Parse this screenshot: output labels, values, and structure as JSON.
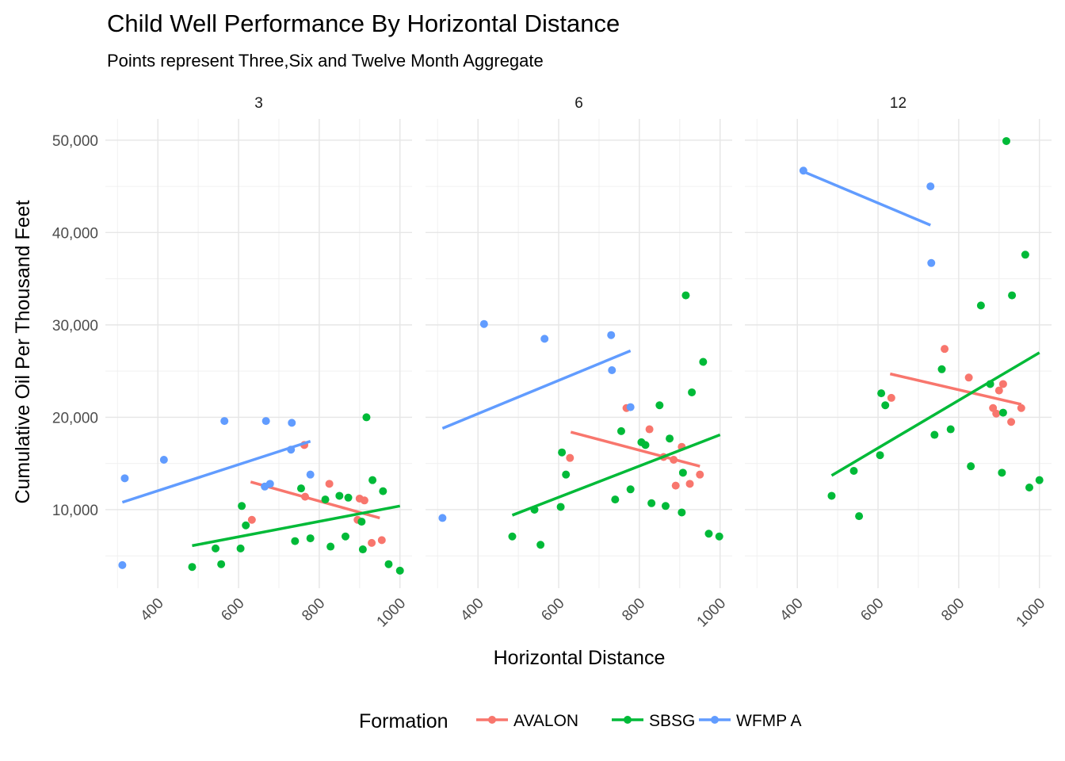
{
  "chart_data": {
    "type": "scatter",
    "title": "Child Well Performance By Horizontal Distance",
    "subtitle": "Points represent Three,Six and Twelve Month Aggregate",
    "xlabel": "Horizontal Distance",
    "ylabel": "Cumulative Oil Per Thousand Feet",
    "xlim": [
      270,
      1030
    ],
    "ylim": [
      1500,
      52300
    ],
    "x_ticks": [
      400,
      600,
      800,
      1000
    ],
    "x_tick_labels": [
      "400",
      "600",
      "800",
      "1000"
    ],
    "y_ticks": [
      10000,
      20000,
      30000,
      40000,
      50000
    ],
    "y_tick_labels": [
      "10,000",
      "20,000",
      "30,000",
      "40,000",
      "50,000"
    ],
    "grid": true,
    "legend": {
      "title": "Formation",
      "position": "bottom",
      "entries": [
        {
          "name": "AVALON",
          "color": "#F8766D"
        },
        {
          "name": "SBSG",
          "color": "#00BA38"
        },
        {
          "name": "WFMP A",
          "color": "#619CFF"
        }
      ]
    },
    "panels": [
      {
        "label": "3",
        "series": [
          {
            "name": "AVALON",
            "color": "#F8766D",
            "points": [
              [
                633,
                8900
              ],
              [
                763,
                17000
              ],
              [
                765,
                11400
              ],
              [
                825,
                12800
              ],
              [
                895,
                8900
              ],
              [
                900,
                11200
              ],
              [
                912,
                11000
              ],
              [
                930,
                6400
              ],
              [
                955,
                6700
              ]
            ],
            "fit": [
              [
                630,
                13000
              ],
              [
                950,
                9100
              ]
            ]
          },
          {
            "name": "SBSG",
            "color": "#00BA38",
            "points": [
              [
                485,
                3800
              ],
              [
                543,
                5800
              ],
              [
                557,
                4100
              ],
              [
                605,
                5800
              ],
              [
                608,
                10400
              ],
              [
                618,
                8300
              ],
              [
                740,
                6600
              ],
              [
                755,
                12300
              ],
              [
                778,
                6900
              ],
              [
                815,
                11100
              ],
              [
                828,
                6000
              ],
              [
                850,
                11500
              ],
              [
                865,
                7100
              ],
              [
                872,
                11300
              ],
              [
                905,
                8700
              ],
              [
                908,
                5700
              ],
              [
                917,
                20000
              ],
              [
                932,
                13200
              ],
              [
                958,
                12000
              ],
              [
                972,
                4100
              ],
              [
                1000,
                3400
              ]
            ],
            "fit": [
              [
                485,
                6100
              ],
              [
                1000,
                10400
              ]
            ]
          },
          {
            "name": "WFMP A",
            "color": "#619CFF",
            "points": [
              [
                312,
                4000
              ],
              [
                318,
                13400
              ],
              [
                415,
                15400
              ],
              [
                565,
                19600
              ],
              [
                665,
                12500
              ],
              [
                668,
                19600
              ],
              [
                678,
                12800
              ],
              [
                730,
                16500
              ],
              [
                732,
                19400
              ],
              [
                778,
                13800
              ]
            ],
            "fit": [
              [
                312,
                10800
              ],
              [
                778,
                17400
              ]
            ]
          }
        ]
      },
      {
        "label": "6",
        "series": [
          {
            "name": "AVALON",
            "color": "#F8766D",
            "points": [
              [
                628,
                15600
              ],
              [
                768,
                21000
              ],
              [
                825,
                18700
              ],
              [
                860,
                15700
              ],
              [
                885,
                15400
              ],
              [
                890,
                12600
              ],
              [
                905,
                16800
              ],
              [
                925,
                12800
              ],
              [
                950,
                13800
              ]
            ],
            "fit": [
              [
                630,
                18400
              ],
              [
                950,
                14700
              ]
            ]
          },
          {
            "name": "SBSG",
            "color": "#00BA38",
            "points": [
              [
                485,
                7100
              ],
              [
                540,
                10000
              ],
              [
                555,
                6200
              ],
              [
                605,
                10300
              ],
              [
                608,
                16200
              ],
              [
                618,
                13800
              ],
              [
                740,
                11100
              ],
              [
                755,
                18500
              ],
              [
                778,
                12200
              ],
              [
                805,
                17300
              ],
              [
                815,
                17000
              ],
              [
                830,
                10700
              ],
              [
                850,
                21300
              ],
              [
                865,
                10400
              ],
              [
                875,
                17700
              ],
              [
                905,
                9700
              ],
              [
                908,
                14000
              ],
              [
                915,
                33200
              ],
              [
                930,
                22700
              ],
              [
                958,
                26000
              ],
              [
                972,
                7400
              ],
              [
                998,
                7100
              ]
            ],
            "fit": [
              [
                485,
                9400
              ],
              [
                1000,
                18100
              ]
            ]
          },
          {
            "name": "WFMP A",
            "color": "#619CFF",
            "points": [
              [
                312,
                9100
              ],
              [
                415,
                30100
              ],
              [
                565,
                28500
              ],
              [
                730,
                28900
              ],
              [
                732,
                25100
              ],
              [
                778,
                21100
              ]
            ],
            "fit": [
              [
                312,
                18800
              ],
              [
                778,
                27200
              ]
            ]
          }
        ]
      },
      {
        "label": "12",
        "series": [
          {
            "name": "AVALON",
            "color": "#F8766D",
            "points": [
              [
                633,
                22100
              ],
              [
                765,
                27400
              ],
              [
                825,
                24300
              ],
              [
                885,
                21000
              ],
              [
                893,
                20400
              ],
              [
                900,
                22900
              ],
              [
                910,
                23600
              ],
              [
                930,
                19500
              ],
              [
                955,
                21000
              ]
            ],
            "fit": [
              [
                630,
                24700
              ],
              [
                955,
                21400
              ]
            ]
          },
          {
            "name": "SBSG",
            "color": "#00BA38",
            "points": [
              [
                485,
                11500
              ],
              [
                540,
                14200
              ],
              [
                553,
                9300
              ],
              [
                605,
                15900
              ],
              [
                608,
                22600
              ],
              [
                618,
                21300
              ],
              [
                740,
                18100
              ],
              [
                758,
                25200
              ],
              [
                780,
                18700
              ],
              [
                830,
                14700
              ],
              [
                855,
                32100
              ],
              [
                878,
                23600
              ],
              [
                907,
                14000
              ],
              [
                910,
                20500
              ],
              [
                918,
                49900
              ],
              [
                932,
                33200
              ],
              [
                965,
                37600
              ],
              [
                975,
                12400
              ],
              [
                1000,
                13200
              ]
            ],
            "fit": [
              [
                485,
                13700
              ],
              [
                1000,
                27000
              ]
            ]
          },
          {
            "name": "WFMP A",
            "color": "#619CFF",
            "points": [
              [
                415,
                46700
              ],
              [
                730,
                45000
              ],
              [
                732,
                36700
              ]
            ],
            "fit": [
              [
                415,
                46600
              ],
              [
                730,
                40800
              ]
            ]
          }
        ]
      }
    ]
  }
}
